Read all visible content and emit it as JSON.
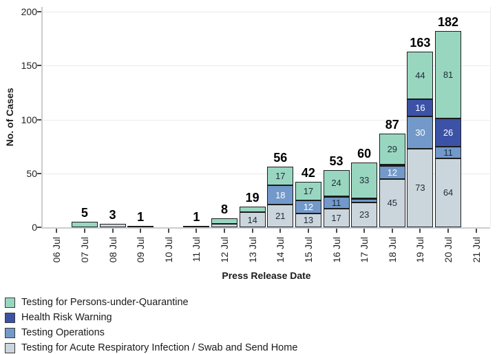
{
  "chart_data": {
    "type": "bar",
    "stacked": true,
    "title": "",
    "xlabel": "Press Release Date",
    "ylabel": "No. of Cases",
    "ylim": [
      0,
      200
    ],
    "yticks": [
      0,
      50,
      100,
      150,
      200
    ],
    "grid": "horizontal",
    "legend_position": "bottom-left",
    "label_min": 11,
    "categories": [
      "06 Jul",
      "07 Jul",
      "08 Jul",
      "09 Jul",
      "10 Jul",
      "11 Jul",
      "12 Jul",
      "13 Jul",
      "14 Jul",
      "15 Jul",
      "16 Jul",
      "17 Jul",
      "18 Jul",
      "19 Jul",
      "20 Jul",
      "21 Jul"
    ],
    "series": [
      {
        "name": "Testing for Acute Respiratory Infection / Swab and Send Home",
        "color": "#cbd5dc",
        "label_white_min": 9999,
        "values": [
          0,
          0,
          3,
          0,
          0,
          0,
          3,
          14,
          21,
          13,
          17,
          23,
          45,
          73,
          64,
          0
        ]
      },
      {
        "name": "Testing Operations",
        "color": "#7299c9",
        "label_white_min": 12,
        "values": [
          0,
          0,
          0,
          1,
          0,
          0,
          0,
          0,
          18,
          12,
          11,
          3,
          12,
          30,
          11,
          0
        ]
      },
      {
        "name": "Health Risk Warning",
        "color": "#3c52a6",
        "label_white_min": 0,
        "values": [
          0,
          0,
          0,
          0,
          0,
          0,
          0,
          0,
          0,
          0,
          1,
          1,
          1,
          16,
          26,
          0
        ]
      },
      {
        "name": "Testing for Persons-under-Quarantine",
        "color": "#99d6c0",
        "label_white_min": 9999,
        "values": [
          0,
          5,
          0,
          0,
          0,
          1,
          5,
          5,
          17,
          17,
          24,
          33,
          29,
          44,
          81,
          0
        ]
      }
    ],
    "totals": [
      null,
      5,
      3,
      1,
      null,
      1,
      8,
      19,
      56,
      42,
      53,
      60,
      87,
      163,
      182,
      null
    ]
  },
  "legend": {
    "items": [
      {
        "label": "Testing for Persons-under-Quarantine",
        "color": "#99d6c0"
      },
      {
        "label": "Health Risk Warning",
        "color": "#3c52a6"
      },
      {
        "label": "Testing Operations",
        "color": "#7299c9"
      },
      {
        "label": "Testing for Acute Respiratory Infection / Swab and Send Home",
        "color": "#cbd5dc"
      }
    ]
  }
}
